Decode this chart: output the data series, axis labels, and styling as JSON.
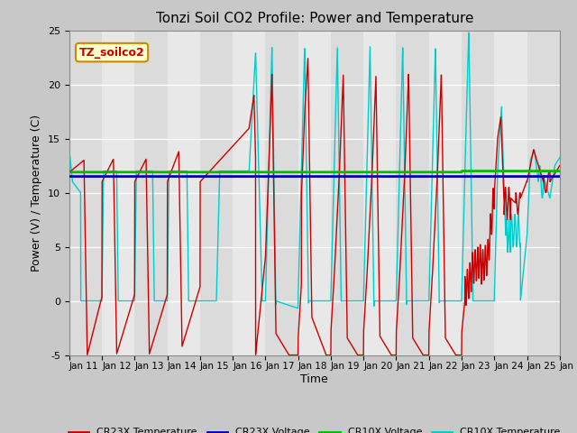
{
  "title": "Tonzi Soil CO2 Profile: Power and Temperature",
  "xlabel": "Time",
  "ylabel": "Power (V) / Temperature (C)",
  "ylim": [
    -5,
    25
  ],
  "xlim": [
    0,
    15
  ],
  "xtick_labels": [
    "Jan 11",
    "Jan 12",
    "Jan 13",
    "Jan 14",
    "Jan 15",
    "Jan 16",
    "Jan 17",
    "Jan 18",
    "Jan 19",
    "Jan 20",
    "Jan 21",
    "Jan 22",
    "Jan 23",
    "Jan 24",
    "Jan 25",
    "Jan 26"
  ],
  "fig_bg_color": "#c8c8c8",
  "plot_bg_color": "#e8e8e8",
  "grid_bg_light": "#dcdcdc",
  "cr23x_temp_color": "#cc0000",
  "cr23x_volt_color": "#0000bb",
  "cr10x_volt_color": "#00bb00",
  "cr10x_temp_color": "#00cccc",
  "annotation_text": "TZ_soilco2",
  "annotation_bg": "#ffffcc",
  "annotation_border": "#cc8800",
  "legend_labels": [
    "CR23X Temperature",
    "CR23X Voltage",
    "CR10X Voltage",
    "CR10X Temperature"
  ]
}
